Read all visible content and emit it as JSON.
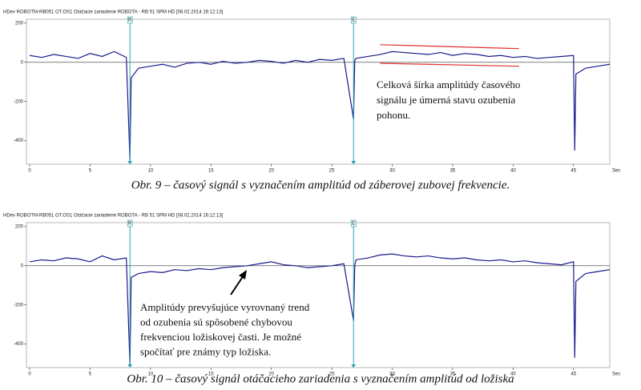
{
  "chart_data": [
    {
      "type": "line",
      "title": "HDev ROBOTM-RB051 OT.OS1 Otáčacie zariadenie ROBOTA - RB 51 SPM HD [08.02.2014 16:12:13]",
      "caption": "Obr. 9 – časový signál s vyznačením amplitúd od záberovej zubovej frekvencie.",
      "xlabel": "Sec",
      "xlim": [
        0,
        48
      ],
      "xticks": [
        0,
        5,
        10,
        15,
        20,
        25,
        30,
        35,
        40,
        45
      ],
      "ylim": [
        -520,
        220
      ],
      "yticks": [
        200,
        0,
        -200,
        -400
      ],
      "markers": [
        {
          "x": 8.3,
          "label": "R"
        },
        {
          "x": 26.8,
          "label": "E"
        }
      ],
      "trend_lines": [
        {
          "x": [
            29,
            40.5
          ],
          "y": [
            90,
            70
          ],
          "color": "#e03030"
        },
        {
          "x": [
            29,
            40.5
          ],
          "y": [
            -5,
            -20
          ],
          "color": "#e03030"
        }
      ],
      "annotations": [
        "Celková šírka amplitúdy časového",
        "signálu je úmerná stavu ozubenia",
        "pohonu."
      ],
      "series": [
        {
          "color": "#1a1a8c",
          "x": [
            0,
            1,
            2,
            3,
            4,
            5,
            6,
            7,
            8,
            8.3,
            8.4,
            9,
            10,
            11,
            12,
            13,
            14,
            15,
            16,
            17,
            18,
            19,
            20,
            21,
            22,
            23,
            24,
            25,
            26,
            26.8,
            26.9,
            27,
            28,
            29,
            30,
            31,
            32,
            33,
            34,
            35,
            36,
            37,
            38,
            39,
            40,
            41,
            42,
            43,
            44,
            45,
            45.1,
            45.2,
            46,
            47,
            48
          ],
          "values": [
            35,
            25,
            40,
            30,
            20,
            45,
            30,
            55,
            25,
            -500,
            -80,
            -30,
            -20,
            -10,
            -25,
            -5,
            0,
            -10,
            5,
            -5,
            0,
            10,
            5,
            -5,
            10,
            0,
            15,
            10,
            20,
            -290,
            10,
            20,
            30,
            40,
            55,
            50,
            45,
            40,
            50,
            35,
            45,
            40,
            30,
            35,
            25,
            30,
            20,
            25,
            30,
            35,
            -450,
            -60,
            -30,
            -20,
            -10
          ]
        }
      ]
    },
    {
      "type": "line",
      "title": "HDev ROBOTM-RB051 OT.OS1 Otáčacie zariadenie ROBOTA - RB 51 SPM HD [08.02.2014 16:12:13]",
      "caption": "Obr. 10 – časový signál otáčacieho zariadenia s vyznačením amplitúd od ložiska",
      "xlabel": "Sec",
      "xlim": [
        0,
        48
      ],
      "xticks": [
        0,
        5,
        10,
        15,
        20,
        25,
        30,
        35,
        40,
        45
      ],
      "ylim": [
        -520,
        220
      ],
      "yticks": [
        200,
        0,
        -200,
        -400
      ],
      "markers": [
        {
          "x": 8.3,
          "label": "R"
        },
        {
          "x": 26.8,
          "label": "E"
        }
      ],
      "annotations": [
        "Amplitúdy prevyšujúce vyrovnaný trend",
        "od ozubenia sú spôsobené chybovou",
        "frekvenciou ložiskovej časti. Je možné",
        "spočítať pre známy typ ložiska."
      ],
      "series": [
        {
          "color": "#1a1a8c",
          "x": [
            0,
            1,
            2,
            3,
            4,
            5,
            6,
            7,
            8,
            8.3,
            8.4,
            9,
            10,
            11,
            12,
            13,
            14,
            15,
            16,
            17,
            18,
            19,
            20,
            21,
            22,
            23,
            24,
            25,
            26,
            26.8,
            26.9,
            27,
            28,
            29,
            30,
            31,
            32,
            33,
            34,
            35,
            36,
            37,
            38,
            39,
            40,
            41,
            42,
            43,
            44,
            45,
            45.1,
            45.2,
            46,
            47,
            48
          ],
          "values": [
            20,
            30,
            25,
            40,
            35,
            20,
            50,
            30,
            40,
            -510,
            -60,
            -40,
            -30,
            -35,
            -20,
            -25,
            -15,
            -20,
            -10,
            -5,
            0,
            10,
            20,
            5,
            0,
            -10,
            -5,
            0,
            10,
            -280,
            0,
            30,
            40,
            55,
            60,
            50,
            45,
            50,
            40,
            35,
            40,
            30,
            25,
            30,
            20,
            25,
            15,
            10,
            5,
            20,
            -470,
            -80,
            -40,
            -30,
            -20
          ]
        }
      ]
    }
  ]
}
